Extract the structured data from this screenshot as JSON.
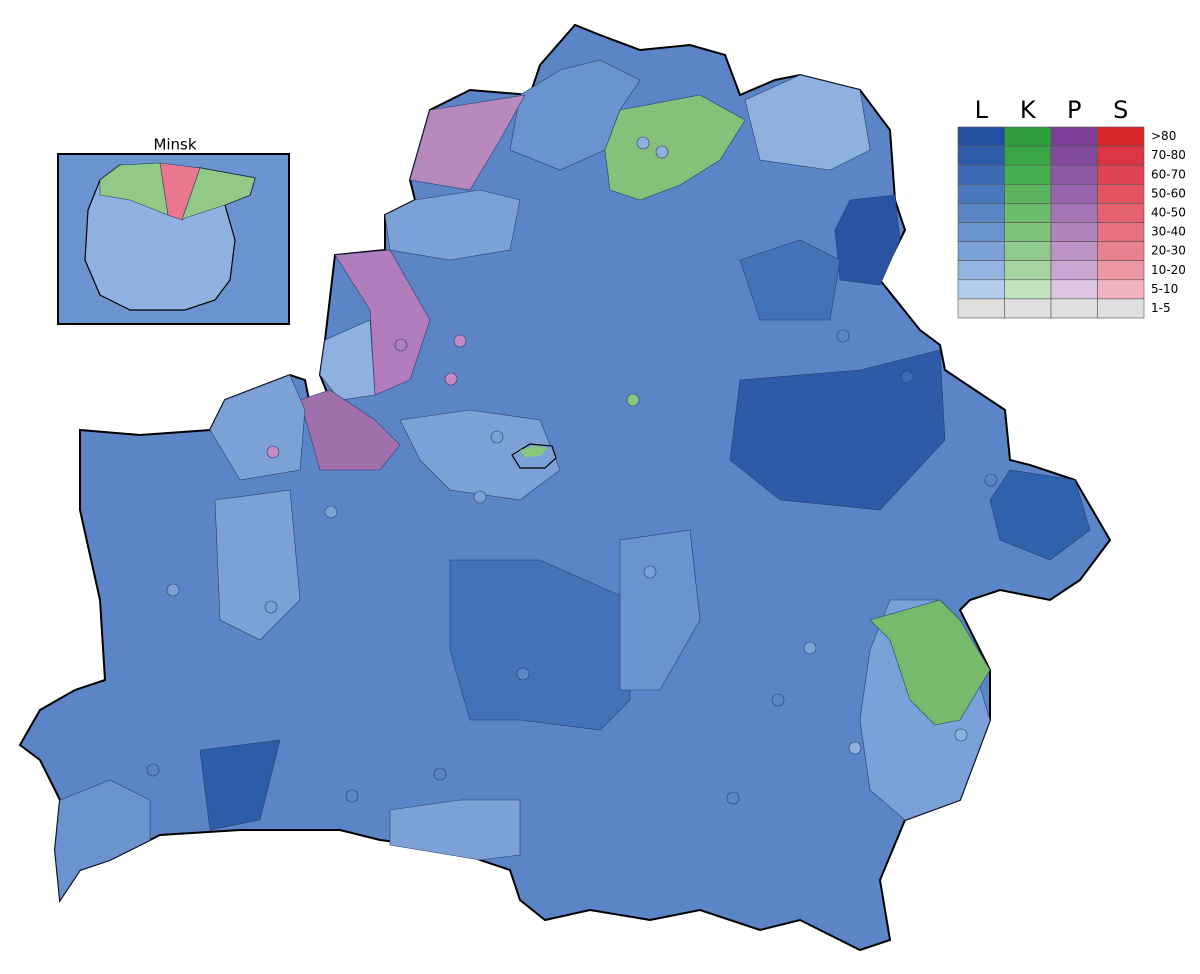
{
  "inset": {
    "title": "Minsk"
  },
  "legend": {
    "columns": [
      "L",
      "K",
      "P",
      "S"
    ],
    "rows": [
      ">80",
      "70-80",
      "60-70",
      "50-60",
      "40-50",
      "30-40",
      "20-30",
      "10-20",
      "5-10",
      "1-5"
    ],
    "colors": [
      [
        "#2250a0",
        "#2e9e3e",
        "#7b3f96",
        "#d62728"
      ],
      [
        "#2d5ca8",
        "#38a646",
        "#834a9c",
        "#dc3545"
      ],
      [
        "#3b6bb3",
        "#48ae52",
        "#8e58a4",
        "#e04452"
      ],
      [
        "#4b78bd",
        "#5ab45f",
        "#9865ad",
        "#e2545f"
      ],
      [
        "#5a86c6",
        "#6cbb6d",
        "#a474b5",
        "#e4626f"
      ],
      [
        "#6b93cf",
        "#7ec27c",
        "#b083bd",
        "#e6727f"
      ],
      [
        "#7ca1d7",
        "#90c98c",
        "#bb93c6",
        "#e8828f"
      ],
      [
        "#93b4e0",
        "#a6d4a1",
        "#c9a7d2",
        "#ec97a4"
      ],
      [
        "#b4cdee",
        "#c3e2bf",
        "#ddc4e2",
        "#f1b3c0"
      ],
      [
        "#e0e0e0",
        "#e0e0e0",
        "#e0e0e0",
        "#e0e0e0"
      ]
    ]
  }
}
